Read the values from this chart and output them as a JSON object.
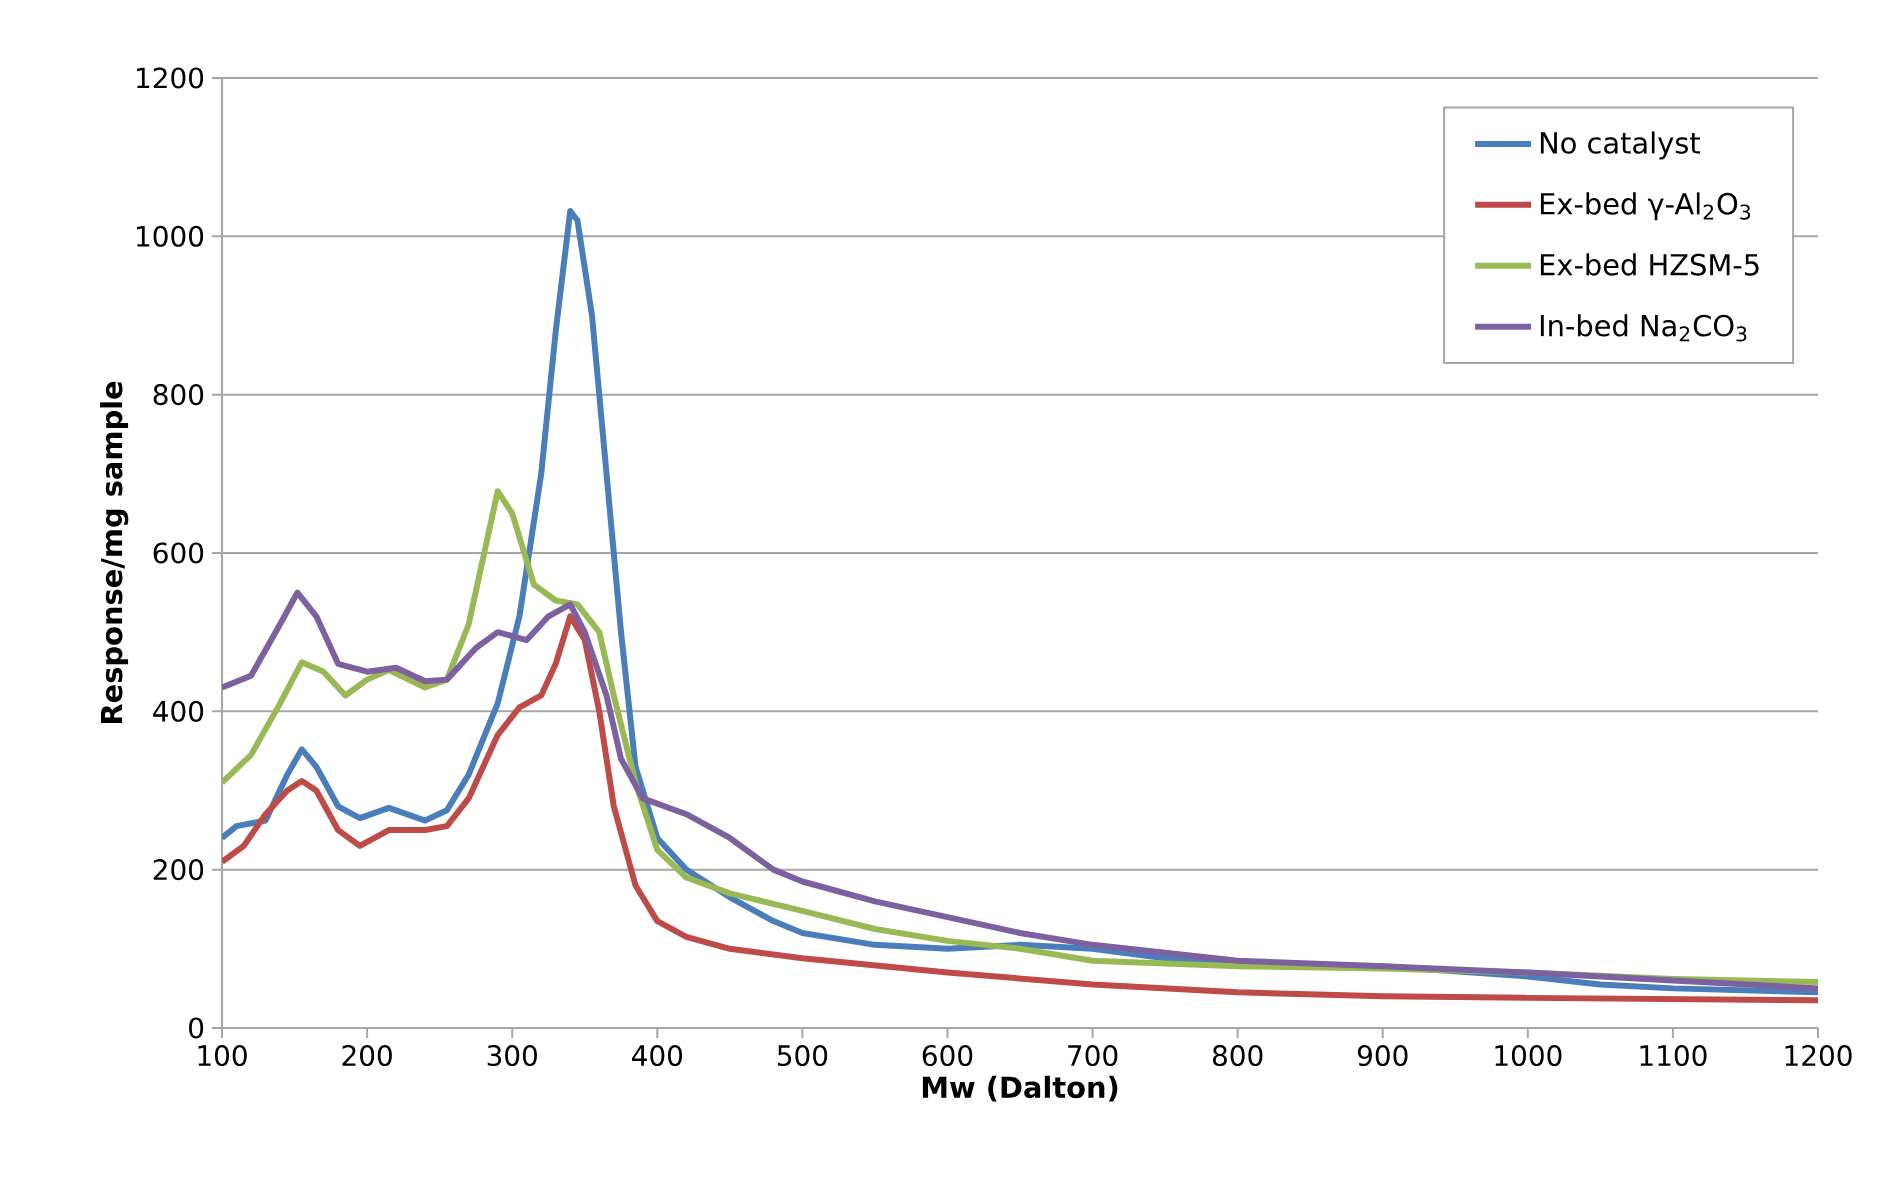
{
  "chart_data": {
    "type": "line",
    "xlabel": "Mw (Dalton)",
    "ylabel": "Response/mg sample",
    "xlim": [
      100,
      1200
    ],
    "ylim": [
      0,
      1200
    ],
    "xticks": [
      100,
      200,
      300,
      400,
      500,
      600,
      700,
      800,
      900,
      1000,
      1100,
      1200
    ],
    "yticks": [
      0,
      200,
      400,
      600,
      800,
      1000,
      1200
    ],
    "grid": "y",
    "legend": "top right",
    "marker": "none",
    "line_style": "solid",
    "series": [
      {
        "name": "No catalyst",
        "color": "#4a7ebb",
        "x": [
          100,
          110,
          130,
          145,
          155,
          165,
          180,
          195,
          215,
          240,
          255,
          270,
          290,
          305,
          320,
          330,
          340,
          345,
          355,
          365,
          375,
          385,
          400,
          420,
          450,
          480,
          500,
          550,
          600,
          650,
          700,
          750,
          800,
          900,
          1000,
          1050,
          1100,
          1200
        ],
        "values": [
          240,
          255,
          262,
          320,
          352,
          330,
          280,
          265,
          278,
          262,
          275,
          320,
          410,
          520,
          700,
          880,
          1032,
          1020,
          900,
          700,
          500,
          330,
          240,
          200,
          165,
          135,
          120,
          105,
          100,
          105,
          100,
          88,
          82,
          78,
          65,
          55,
          50,
          45
        ]
      },
      {
        "name": "Ex-bed γ-Al$_{2}$O$_{3}$",
        "color": "#be4b48",
        "x": [
          100,
          115,
          130,
          145,
          155,
          165,
          180,
          195,
          215,
          240,
          255,
          270,
          290,
          305,
          320,
          330,
          340,
          350,
          360,
          370,
          385,
          400,
          420,
          450,
          500,
          600,
          700,
          800,
          900,
          1000,
          1200
        ],
        "values": [
          210,
          230,
          270,
          300,
          312,
          300,
          250,
          230,
          250,
          250,
          255,
          290,
          370,
          405,
          420,
          460,
          520,
          490,
          400,
          280,
          180,
          135,
          115,
          100,
          88,
          70,
          55,
          45,
          40,
          38,
          35
        ]
      },
      {
        "name": "Ex-bed HZSM-5",
        "color": "#98b954",
        "x": [
          100,
          120,
          140,
          155,
          170,
          185,
          200,
          215,
          240,
          255,
          270,
          290,
          300,
          315,
          330,
          345,
          360,
          370,
          385,
          400,
          420,
          450,
          500,
          550,
          600,
          650,
          700,
          800,
          900,
          1000,
          1100,
          1200
        ],
        "values": [
          310,
          345,
          410,
          462,
          450,
          420,
          440,
          452,
          430,
          440,
          510,
          678,
          650,
          560,
          540,
          535,
          500,
          420,
          310,
          225,
          190,
          170,
          148,
          125,
          110,
          100,
          85,
          78,
          75,
          70,
          62,
          58
        ]
      },
      {
        "name": "In-bed Na$_{2}$CO$_{3}$",
        "color": "#7d60a0",
        "x": [
          100,
          120,
          140,
          152,
          165,
          180,
          200,
          220,
          240,
          255,
          275,
          290,
          310,
          325,
          340,
          350,
          365,
          375,
          390,
          420,
          450,
          480,
          500,
          550,
          600,
          650,
          700,
          800,
          900,
          1000,
          1100,
          1200
        ],
        "values": [
          430,
          445,
          510,
          550,
          520,
          460,
          450,
          455,
          438,
          440,
          480,
          500,
          490,
          520,
          535,
          500,
          420,
          340,
          290,
          270,
          240,
          200,
          185,
          160,
          140,
          120,
          105,
          85,
          78,
          70,
          60,
          50
        ]
      }
    ]
  }
}
